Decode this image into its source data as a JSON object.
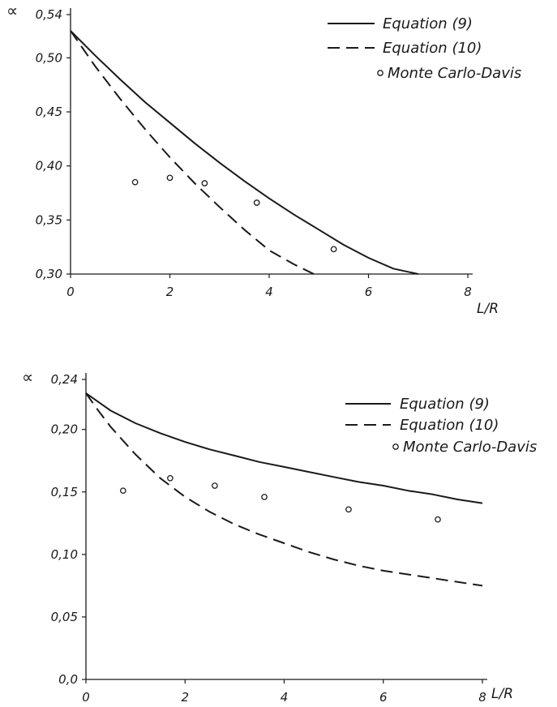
{
  "chart_data": [
    {
      "type": "line",
      "ylabel": "∝",
      "xlabel": "L/R",
      "xlim": [
        0,
        8
      ],
      "ylim": [
        0.3,
        0.54
      ],
      "x_ticks": [
        "0",
        "2",
        "4",
        "6",
        "8"
      ],
      "y_ticks": [
        "0,30",
        "0,35",
        "0,40",
        "0,45",
        "0,50",
        "0,54"
      ],
      "legend_placement": "top-right",
      "grid": false,
      "series": [
        {
          "name": "Equation (9)",
          "style": "solid",
          "x": [
            0,
            0.5,
            1,
            1.5,
            2,
            2.5,
            3,
            3.5,
            4,
            4.5,
            5,
            5.5,
            6,
            6.5,
            7.0
          ],
          "y": [
            0.525,
            0.502,
            0.48,
            0.459,
            0.44,
            0.421,
            0.403,
            0.386,
            0.37,
            0.355,
            0.341,
            0.327,
            0.315,
            0.305,
            0.3
          ]
        },
        {
          "name": "Equation (10)",
          "style": "dashed",
          "x": [
            0,
            0.5,
            1,
            1.5,
            2,
            2.5,
            3,
            3.5,
            4,
            4.5,
            4.9
          ],
          "y": [
            0.525,
            0.492,
            0.462,
            0.434,
            0.408,
            0.384,
            0.362,
            0.341,
            0.322,
            0.309,
            0.3
          ]
        },
        {
          "name": "Monte Carlo-Davis",
          "style": "markers",
          "x": [
            1.3,
            2.0,
            2.7,
            3.75,
            5.3
          ],
          "y": [
            0.385,
            0.389,
            0.384,
            0.366,
            0.323
          ]
        }
      ]
    },
    {
      "type": "line",
      "ylabel": "∝",
      "xlabel": "L/R",
      "xlim": [
        0,
        8
      ],
      "ylim": [
        0.0,
        0.24
      ],
      "x_ticks": [
        "0",
        "2",
        "4",
        "6",
        "8"
      ],
      "y_ticks": [
        "0,0",
        "0,05",
        "0,10",
        "0,15",
        "0,20",
        "0,24"
      ],
      "legend_placement": "top-right",
      "grid": false,
      "series": [
        {
          "name": "Equation (9)",
          "style": "solid",
          "x": [
            0,
            0.5,
            1,
            1.5,
            2,
            2.5,
            3,
            3.5,
            4,
            4.5,
            5,
            5.5,
            6,
            6.5,
            7,
            7.5,
            8
          ],
          "y": [
            0.229,
            0.215,
            0.205,
            0.197,
            0.19,
            0.184,
            0.179,
            0.174,
            0.17,
            0.166,
            0.162,
            0.158,
            0.155,
            0.151,
            0.148,
            0.144,
            0.141
          ]
        },
        {
          "name": "Equation (10)",
          "style": "dashed",
          "x": [
            0,
            0.25,
            0.5,
            1,
            1.5,
            2,
            2.5,
            3,
            3.5,
            4,
            4.5,
            5,
            5.5,
            6,
            6.5,
            7,
            7.5,
            8
          ],
          "y": [
            0.229,
            0.215,
            0.202,
            0.18,
            0.161,
            0.146,
            0.134,
            0.124,
            0.116,
            0.109,
            0.102,
            0.096,
            0.091,
            0.087,
            0.084,
            0.081,
            0.078,
            0.075
          ]
        },
        {
          "name": "Monte Carlo-Davis",
          "style": "markers",
          "x": [
            0.75,
            1.7,
            2.6,
            3.6,
            5.3,
            7.1
          ],
          "y": [
            0.151,
            0.161,
            0.155,
            0.146,
            0.136,
            0.128
          ]
        }
      ]
    }
  ]
}
